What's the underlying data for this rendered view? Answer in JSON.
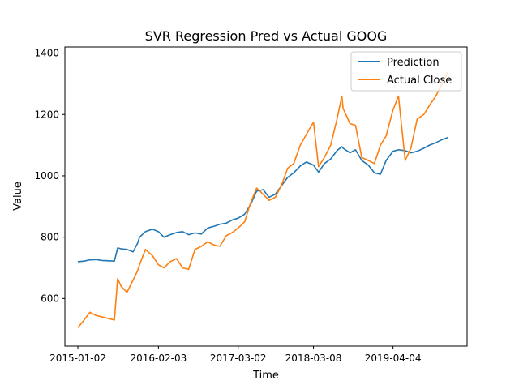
{
  "chart_data": {
    "type": "line",
    "title": "SVR Regression Pred vs Actual GOOG",
    "xlabel": "Time",
    "ylabel": "Value",
    "x_ticks": [
      "2015-01-02",
      "2016-02-03",
      "2017-03-02",
      "2018-03-08",
      "2019-04-04"
    ],
    "y_ticks": [
      600,
      800,
      1000,
      1200,
      1400
    ],
    "ylim": [
      445,
      1420
    ],
    "xlim": [
      "2014-10-30",
      "2020-04-03"
    ],
    "legend_position": "top-right",
    "grid": false,
    "x": [
      "2015-01-02",
      "2015-02-02",
      "2015-03-02",
      "2015-04-01",
      "2015-05-01",
      "2015-06-01",
      "2015-07-01",
      "2015-07-17",
      "2015-08-03",
      "2015-09-01",
      "2015-10-01",
      "2015-10-23",
      "2015-11-02",
      "2015-12-01",
      "2016-01-04",
      "2016-02-03",
      "2016-03-01",
      "2016-04-01",
      "2016-05-02",
      "2016-06-01",
      "2016-07-01",
      "2016-08-01",
      "2016-09-01",
      "2016-10-03",
      "2016-11-01",
      "2016-12-01",
      "2017-01-03",
      "2017-02-01",
      "2017-03-02",
      "2017-04-03",
      "2017-05-01",
      "2017-06-01",
      "2017-07-03",
      "2017-08-01",
      "2017-09-01",
      "2017-10-02",
      "2017-11-01",
      "2017-12-01",
      "2018-01-02",
      "2018-02-01",
      "2018-03-08",
      "2018-04-02",
      "2018-05-01",
      "2018-06-01",
      "2018-07-02",
      "2018-07-26",
      "2018-08-01",
      "2018-09-04",
      "2018-10-01",
      "2018-11-01",
      "2018-12-03",
      "2019-01-02",
      "2019-02-01",
      "2019-03-01",
      "2019-04-04",
      "2019-05-01",
      "2019-06-03",
      "2019-07-01",
      "2019-08-01",
      "2019-09-03",
      "2019-10-01",
      "2019-11-01",
      "2019-12-02",
      "2019-12-31"
    ],
    "series": [
      {
        "name": "Prediction",
        "color": "#1f77b4",
        "values": [
          720,
          722,
          726,
          727,
          724,
          723,
          722,
          765,
          762,
          760,
          752,
          780,
          800,
          818,
          826,
          818,
          800,
          808,
          815,
          818,
          808,
          814,
          810,
          830,
          835,
          842,
          846,
          856,
          862,
          875,
          905,
          950,
          955,
          930,
          940,
          968,
          995,
          1010,
          1032,
          1045,
          1035,
          1012,
          1040,
          1055,
          1082,
          1095,
          1090,
          1075,
          1085,
          1050,
          1035,
          1010,
          1005,
          1050,
          1080,
          1085,
          1082,
          1075,
          1080,
          1090,
          1100,
          1108,
          1118,
          1125
        ]
      },
      {
        "name": "Actual Close",
        "color": "#ff7f0e",
        "values": [
          505,
          530,
          555,
          545,
          540,
          535,
          530,
          665,
          640,
          620,
          660,
          690,
          710,
          760,
          740,
          710,
          700,
          720,
          730,
          700,
          695,
          760,
          770,
          785,
          775,
          770,
          805,
          815,
          830,
          850,
          910,
          960,
          940,
          920,
          930,
          970,
          1025,
          1040,
          1100,
          1135,
          1175,
          1030,
          1060,
          1100,
          1185,
          1260,
          1220,
          1170,
          1165,
          1060,
          1050,
          1040,
          1100,
          1130,
          1215,
          1260,
          1050,
          1090,
          1185,
          1200,
          1230,
          1260,
          1300,
          1340
        ]
      }
    ]
  }
}
